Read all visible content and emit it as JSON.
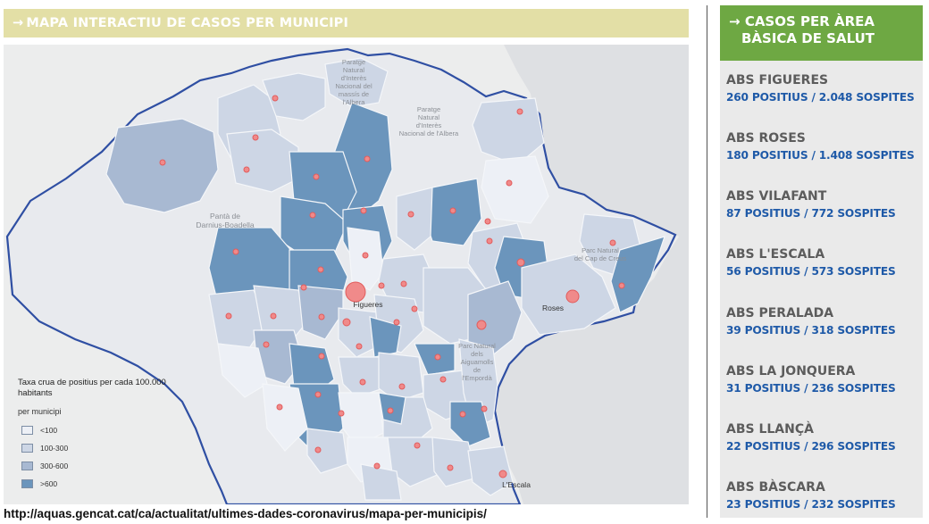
{
  "map": {
    "title": "MAPA INTERACTIU DE CASOS PER MUNICIPI",
    "labels": {
      "paratge_albera_massis": [
        "Paratge",
        "Natural",
        "d'Interès",
        "Nacional del",
        "massís de",
        "l'Albera"
      ],
      "paratge_albera": [
        "Paratge",
        "Natural",
        "d'Interès",
        "Nacional de l'Albera"
      ],
      "pantà": [
        "Pantà de",
        "Darnius-Boadella"
      ],
      "parc_cap_creus": [
        "Parc Natural",
        "del Cap de Creus"
      ],
      "figueres": "Figueres",
      "roses": "Roses",
      "aiguamolls": [
        "Parc Natural",
        "dels",
        "Aiguamolls",
        "de",
        "l'Empordà"
      ],
      "escala": "L'Escala"
    },
    "legend": {
      "title": "Taxa crua de positius per cada 100.000 habitants",
      "subtitle": "per municipi",
      "items": [
        {
          "label": "<100",
          "color": "#edf0f6"
        },
        {
          "label": "100-300",
          "color": "#cdd6e5"
        },
        {
          "label": "300-600",
          "color": "#a8b9d2"
        },
        {
          "label": ">600",
          "color": "#6b95bc"
        }
      ]
    }
  },
  "source_url": "http://aquas.gencat.cat/ca/actualitat/ultimes-dades-coronavirus/mapa-per-municipis/",
  "sidebar": {
    "title_line1": "Casos per àrea",
    "title_line2": "bàsica de salut",
    "items": [
      {
        "name": "ABS FIGUERES",
        "stats": "260 POSITIUS / 2.048 SOSPITES"
      },
      {
        "name": "ABS ROSES",
        "stats": "180 POSITIUS / 1.408 SOSPITES"
      },
      {
        "name": "ABS VILAFANT",
        "stats": "87 POSITIUS / 772 SOSPITES"
      },
      {
        "name": "ABS L'ESCALA",
        "stats": "56 POSITIUS / 573 SOSPITES"
      },
      {
        "name": "ABS PERALADA",
        "stats": "39 POSITIUS / 318 SOSPITES"
      },
      {
        "name": "ABS LA JONQUERA",
        "stats": "31 POSITIUS / 236 SOSPITES"
      },
      {
        "name": "ABS LLANÇÀ",
        "stats": "22 POSITIUS / 296 SOSPITES"
      },
      {
        "name": "ABS BÀSCARA",
        "stats": "23 POSITIUS / 232 SOSPITES"
      }
    ]
  },
  "colors": {
    "very_low": "#edf0f6",
    "low": "#cdd6e5",
    "mid": "#a8b9d2",
    "high": "#6b95bc",
    "border": "#2f4fa3",
    "marker": "#f08a8a",
    "header_map": "#e3dfa6",
    "header_side": "#6ea843",
    "stats_text": "#1f5aa8"
  }
}
